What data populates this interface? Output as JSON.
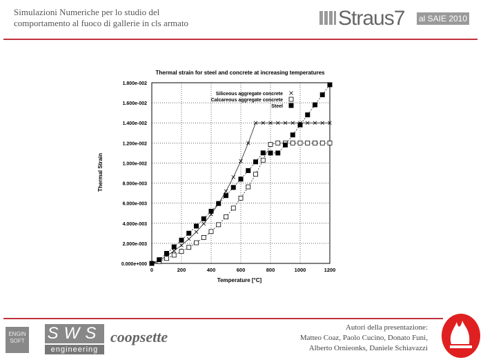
{
  "header": {
    "title_line1": "Simulazioni Numeriche per lo studio del",
    "title_line2": "comportamento al fuoco di gallerie in cls armato",
    "logo_text": "Straus7",
    "badge": "al SAIE 2010"
  },
  "footer": {
    "logo_enginsoft": "ENGIN SOFT",
    "logo_sws": "SWS",
    "logo_sws_sub": "engineering",
    "logo_coopsette": "coopsette",
    "authors_line1": "Autori della presentazione:",
    "authors_line2": "Matteo Coaz, Paolo Cucino, Donato Funi,",
    "authors_line3": "Alberto Ornieonks, Daniele Schiavazzi",
    "accent_color": "#c0303a"
  },
  "chart_data": {
    "type": "line",
    "title": "Thermal strain for steel and concrete at increasing temperatures",
    "xlabel": "Temperature [°C]",
    "ylabel": "Thermal Strain",
    "xlim": [
      0,
      1200
    ],
    "ylim": [
      0,
      0.018
    ],
    "xticks": [
      "0",
      "200",
      "400",
      "600",
      "800",
      "1000",
      "1200"
    ],
    "yticks": [
      "0.000e+000",
      "2.000e-003",
      "4.000e-003",
      "6.000e-003",
      "8.000e-003",
      "1.000e-002",
      "1.200e-002",
      "1.400e-002",
      "1.600e-002",
      "1.800e-002"
    ],
    "grid": true,
    "legend_position": "top-right",
    "x": [
      0,
      50,
      100,
      150,
      200,
      250,
      300,
      350,
      400,
      450,
      500,
      550,
      600,
      650,
      700,
      750,
      800,
      850,
      900,
      950,
      1000,
      1050,
      1100,
      1150,
      1200
    ],
    "series": [
      {
        "name": "Siliceous aggregate concrete",
        "marker": "x",
        "line": "solid",
        "values": [
          0,
          0.000273,
          0.000743,
          0.001248,
          0.001804,
          0.002429,
          0.003141,
          0.003956,
          0.004892,
          0.005966,
          0.007195,
          0.008597,
          0.010188,
          0.011987,
          0.014,
          0.014,
          0.014,
          0.014,
          0.014,
          0.014,
          0.014,
          0.014,
          0.014,
          0.014,
          0.014
        ]
      },
      {
        "name": "Calcareous aggregate concrete",
        "marker": "open-square",
        "line": "dashed",
        "values": [
          0,
          0.000182,
          0.000494,
          0.000827,
          0.001192,
          0.001599,
          0.002058,
          0.00258,
          0.003176,
          0.003856,
          0.00463,
          0.005509,
          0.006504,
          0.007625,
          0.008882,
          0.010286,
          0.011848,
          0.012,
          0.012,
          0.012,
          0.012,
          0.012,
          0.012,
          0.012,
          0.012
        ]
      },
      {
        "name": "Steel",
        "marker": "filled-square",
        "line": "dashed",
        "values": [
          0,
          0.000368,
          0.000998,
          0.001648,
          0.002318,
          0.003008,
          0.003718,
          0.004448,
          0.005198,
          0.005968,
          0.006758,
          0.007568,
          0.008398,
          0.009248,
          0.010118,
          0.011008,
          0.011,
          0.011,
          0.0118,
          0.0128,
          0.0138,
          0.0148,
          0.0158,
          0.0168,
          0.0178
        ]
      }
    ]
  }
}
